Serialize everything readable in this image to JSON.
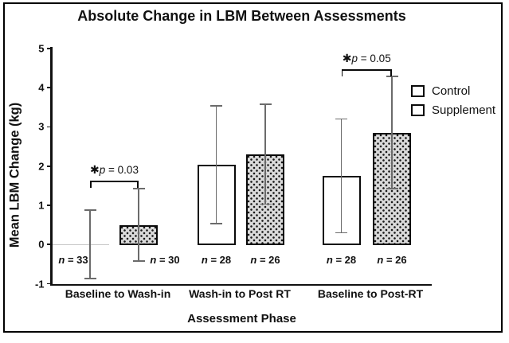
{
  "chart_data": {
    "type": "bar",
    "title": "Absolute Change in LBM Between Assessments",
    "xlabel": "Assessment Phase",
    "ylabel": "Mean LBM Change (kg)",
    "ylim": [
      -1,
      5
    ],
    "yticks": [
      5,
      4,
      3,
      2,
      1,
      0,
      -1
    ],
    "grid": false,
    "legend_position": "right-inside",
    "categories": [
      "Baseline to Wash-in",
      "Wash-in to Post RT",
      "Baseline to Post-RT"
    ],
    "series": [
      {
        "name": "Control",
        "fill": "white",
        "values": [
          0.0,
          2.03,
          1.75
        ],
        "errors": [
          0.87,
          1.5,
          1.45
        ],
        "n_labels": [
          "n = 33",
          "n = 28",
          "n = 28"
        ]
      },
      {
        "name": "Supplement",
        "fill": "stippled-gray",
        "values": [
          0.5,
          2.3,
          2.85
        ],
        "errors": [
          0.92,
          1.27,
          1.43
        ],
        "n_labels": [
          "n = 30",
          "n = 26",
          "n = 26"
        ]
      }
    ],
    "annotations": [
      {
        "group_index": 0,
        "star": "✱",
        "label": "p = 0.03",
        "bracket_y": 1.63
      },
      {
        "group_index": 2,
        "star": "✱",
        "label": "p = 0.05",
        "bracket_y": 4.47
      }
    ],
    "colors": {
      "bar_border": "#0a0a0a",
      "control_fill": "#ffffff",
      "supplement_fill": "#dadada",
      "error_bar": "#6b6b6b",
      "text": "#111111",
      "background": "#ffffff"
    }
  }
}
